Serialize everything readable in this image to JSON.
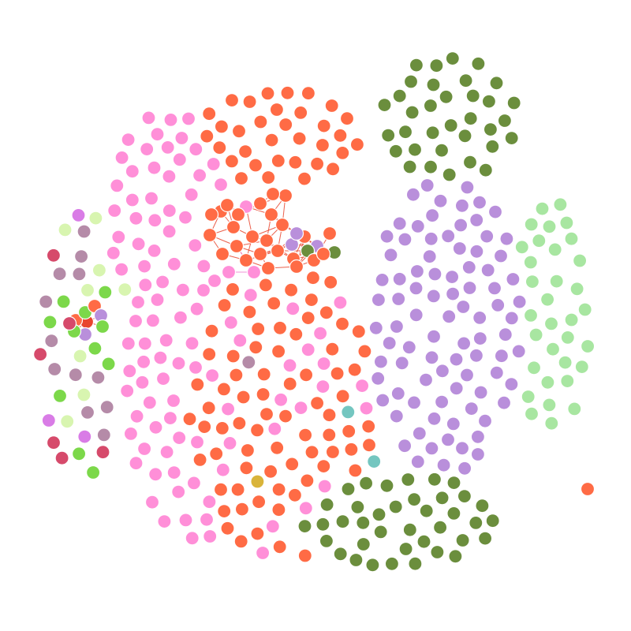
{
  "graph": {
    "type": "network",
    "palette": {
      "orange_red": "#FF6B45",
      "pink": "#FF8FD8",
      "olive_green": "#6B8E3D",
      "lavender": "#B98FDB",
      "light_green": "#A8E6A1",
      "teal": "#3F8F8F",
      "magenta_purple": "#D97CE6",
      "crimson": "#D64A6B",
      "mauve": "#B58BA8",
      "lime": "#7CD84A",
      "gold": "#D9B43A",
      "pale_lime": "#D8F5B0",
      "light_teal": "#74C6C0",
      "edge_red": "#E8452E",
      "edge_pink": "#F07FD0"
    },
    "clusters": [
      {
        "name": "orange-red",
        "color": "#FF6B45",
        "count": 130
      },
      {
        "name": "pink",
        "color": "#FF8FD8",
        "count": 150
      },
      {
        "name": "olive-green",
        "color": "#6B8E3D",
        "count": 110
      },
      {
        "name": "lavender",
        "color": "#B98FDB",
        "count": 130
      },
      {
        "name": "light-green",
        "color": "#A8E6A1",
        "count": 30
      },
      {
        "name": "minor",
        "color": "mixed",
        "count": 60
      }
    ],
    "dense_subgraph": {
      "node_colors": [
        "#FF6B45",
        "#FF8FD8",
        "#B98FDB",
        "#6B8E3D"
      ],
      "edge_color": "#E8452E"
    },
    "small_subgraph": {
      "node_colors": [
        "#E8452E",
        "#7CD84A",
        "#D64A6B",
        "#B98FDB"
      ],
      "edge_color": "#E8452E"
    }
  }
}
